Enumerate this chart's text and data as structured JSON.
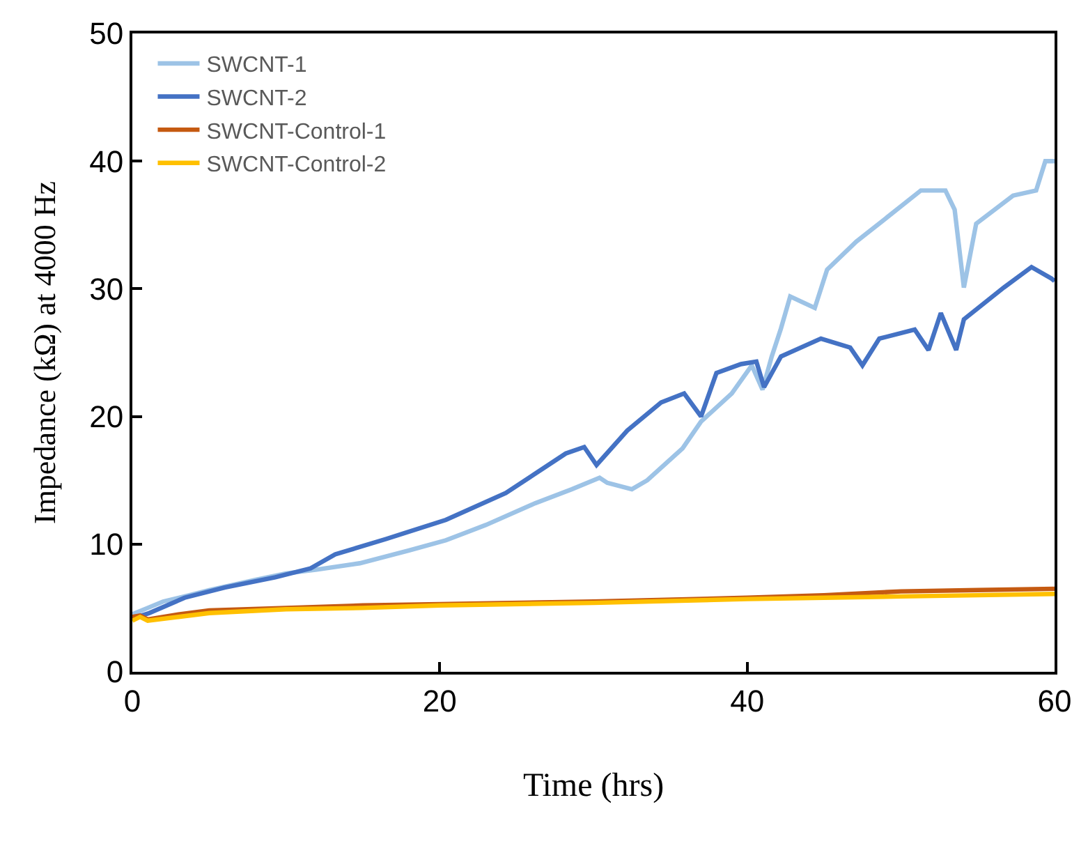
{
  "chart_data": {
    "type": "line",
    "xlabel": "Time (hrs)",
    "ylabel": "Impedance (kΩ) at 4000 Hz",
    "xlim": [
      0,
      60
    ],
    "xticks": [
      0,
      20,
      40,
      60
    ],
    "ylim": [
      0,
      50
    ],
    "yticks": [
      0,
      10,
      20,
      30,
      40,
      50
    ],
    "legend": "top left",
    "marker": "none",
    "line_style": "solid",
    "series": [
      {
        "name": "SWCNT-1",
        "color": "#9dc3e6",
        "x": [
          0,
          1,
          2,
          3.4,
          5,
          8,
          10,
          12,
          14.8,
          18,
          20.4,
          23,
          26.2,
          28.6,
          30.4,
          30.9,
          32.5,
          33.5,
          35.8,
          37,
          39,
          40.3,
          41,
          41.6,
          42.2,
          42.8,
          43.5,
          44.4,
          45.2,
          47.1,
          49,
          51.3,
          52.9,
          53.5,
          54.1,
          54.9,
          57.3,
          58.8,
          59.4,
          60
        ],
        "values": [
          4.5,
          5.0,
          5.5,
          5.9,
          6.4,
          7.2,
          7.7,
          8.0,
          8.5,
          9.5,
          10.3,
          11.5,
          13.2,
          14.3,
          15.2,
          14.8,
          14.3,
          15.0,
          17.5,
          19.6,
          21.8,
          24.0,
          22.1,
          24.7,
          26.9,
          29.4,
          29.0,
          28.5,
          31.5,
          33.7,
          35.5,
          37.7,
          37.7,
          36.2,
          30.1,
          35.1,
          37.3,
          37.7,
          40.0,
          40.0
        ]
      },
      {
        "name": "SWCNT-2",
        "color": "#4472c4",
        "x": [
          0,
          0.6,
          1.1,
          3.4,
          6,
          9.3,
          11.6,
          13.2,
          16.5,
          20.4,
          24.3,
          28.2,
          29.4,
          30.2,
          32.2,
          34.4,
          35.9,
          37,
          38,
          39.6,
          40.6,
          41.1,
          42.2,
          44.8,
          46.7,
          47.5,
          48.6,
          50.9,
          51.8,
          52.6,
          53.6,
          54.1,
          56.7,
          58.5,
          59.8,
          60
        ],
        "values": [
          4.2,
          4.4,
          4.6,
          5.8,
          6.6,
          7.4,
          8.1,
          9.2,
          10.4,
          11.9,
          14.0,
          17.1,
          17.6,
          16.2,
          18.9,
          21.1,
          21.8,
          20.0,
          23.4,
          24.1,
          24.3,
          22.3,
          24.7,
          26.1,
          25.4,
          24.0,
          26.1,
          26.8,
          25.2,
          28.1,
          25.2,
          27.6,
          30.1,
          31.7,
          30.8,
          30.6
        ]
      },
      {
        "name": "SWCNT-Control-1",
        "color": "#c55a11",
        "x": [
          0,
          0.5,
          1,
          3,
          5,
          10,
          15,
          20,
          30,
          40,
          45,
          50,
          55,
          60
        ],
        "values": [
          4.3,
          4.4,
          4.1,
          4.5,
          4.8,
          5.0,
          5.2,
          5.3,
          5.5,
          5.8,
          6.0,
          6.3,
          6.4,
          6.5
        ]
      },
      {
        "name": "SWCNT-Control-2",
        "color": "#ffc000",
        "x": [
          0,
          0.5,
          1,
          3,
          5,
          10,
          15,
          20,
          30,
          40,
          45,
          50,
          55,
          60
        ],
        "values": [
          4.0,
          4.3,
          4.0,
          4.3,
          4.6,
          4.9,
          5.0,
          5.2,
          5.4,
          5.7,
          5.8,
          5.9,
          6.0,
          6.1
        ]
      }
    ]
  }
}
